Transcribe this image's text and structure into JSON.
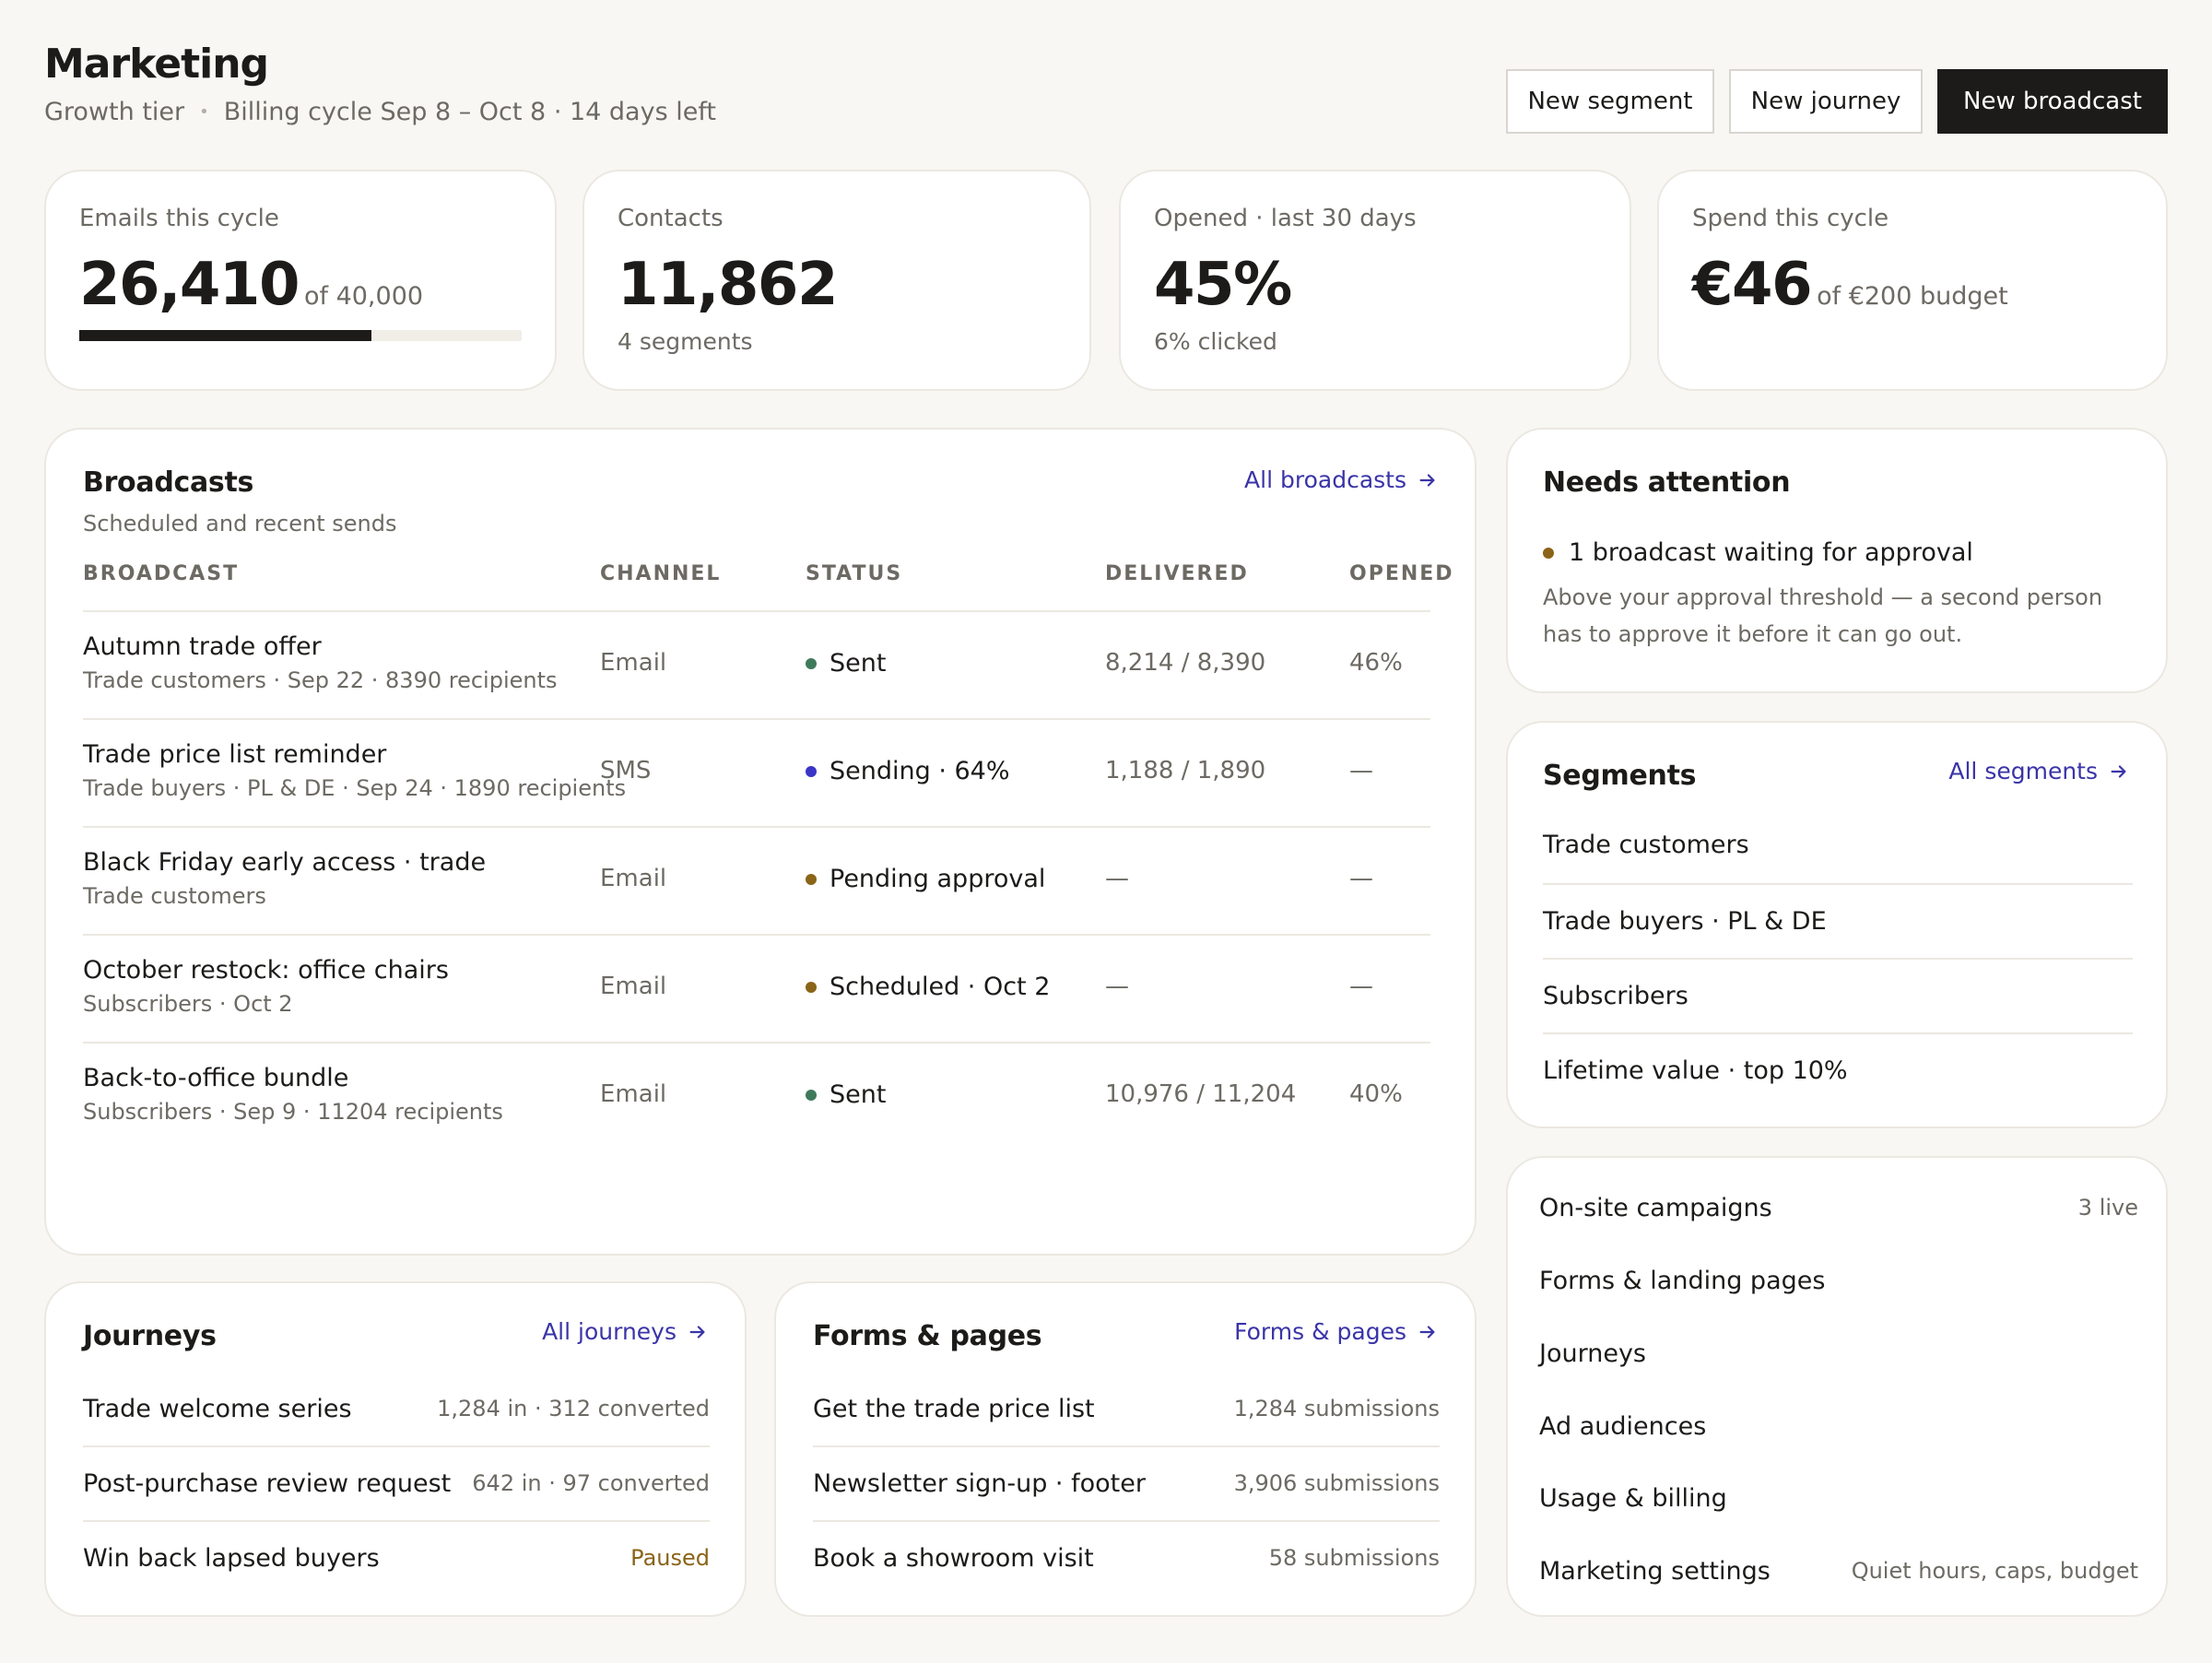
{
  "header": {
    "title": "Marketing",
    "tier": "Growth tier",
    "billing": "Billing cycle Sep 8 – Oct 8 · 14 days left",
    "buttons": {
      "new_segment": "New segment",
      "new_journey": "New journey",
      "new_broadcast": "New broadcast"
    }
  },
  "stats": [
    {
      "label": "Emails this cycle",
      "value": "26,410",
      "suffix": "of 40,000",
      "progress": 0.66
    },
    {
      "label": "Contacts",
      "value": "11,862",
      "note": "4 segments"
    },
    {
      "label": "Opened · last 30 days",
      "value": "45%",
      "note": "6% clicked"
    },
    {
      "label": "Spend this cycle",
      "value": "€46",
      "suffix": "of €200 budget"
    }
  ],
  "broadcasts": {
    "title": "Broadcasts",
    "subtitle": "Scheduled and recent sends",
    "link": "All broadcasts",
    "columns": [
      "BROADCAST",
      "CHANNEL",
      "STATUS",
      "DELIVERED",
      "OPENED"
    ],
    "rows": [
      {
        "name": "Autumn trade offer",
        "meta": "Trade customers · Sep 22 · 8390 recipients",
        "channel": "Email",
        "status": "Sent",
        "status_color": "#3f7a5c",
        "delivered": "8,214 / 8,390",
        "opened": "46%"
      },
      {
        "name": "Trade price list reminder",
        "meta": "Trade buyers · PL & DE · Sep 24 · 1890 recipients",
        "channel": "SMS",
        "status": "Sending · 64%",
        "status_color": "#3b35c7",
        "delivered": "1,188 / 1,890",
        "opened": "—"
      },
      {
        "name": "Black Friday early access · trade",
        "meta": "Trade customers",
        "channel": "Email",
        "status": "Pending approval",
        "status_color": "#8a6418",
        "delivered": "—",
        "opened": "—"
      },
      {
        "name": "October restock: office chairs",
        "meta": "Subscribers · Oct 2",
        "channel": "Email",
        "status": "Scheduled · Oct 2",
        "status_color": "#8a6418",
        "delivered": "—",
        "opened": "—"
      },
      {
        "name": "Back-to-office bundle",
        "meta": "Subscribers · Sep 9 · 11204 recipients",
        "channel": "Email",
        "status": "Sent",
        "status_color": "#3f7a5c",
        "delivered": "10,976 / 11,204",
        "opened": "40%"
      }
    ]
  },
  "attention": {
    "title": "Needs attention",
    "item_title": "1 broadcast waiting for approval",
    "item_text": "Above your approval threshold — a second person has to approve it before it can go out.",
    "dot_color": "#8a6418"
  },
  "segments": {
    "title": "Segments",
    "link": "All segments",
    "items": [
      "Trade customers",
      "Trade buyers · PL & DE",
      "Subscribers",
      "Lifetime value · top 10%"
    ]
  },
  "nav": {
    "items": [
      {
        "label": "On-site campaigns",
        "note": "3 live"
      },
      {
        "label": "Forms & landing pages",
        "note": ""
      },
      {
        "label": "Journeys",
        "note": ""
      },
      {
        "label": "Ad audiences",
        "note": ""
      },
      {
        "label": "Usage & billing",
        "note": ""
      },
      {
        "label": "Marketing settings",
        "note": "Quiet hours, caps, budget"
      }
    ]
  },
  "journeys": {
    "title": "Journeys",
    "link": "All journeys",
    "items": [
      {
        "name": "Trade welcome series",
        "stat": "1,284 in · 312 converted"
      },
      {
        "name": "Post-purchase review request",
        "stat": "642 in · 97 converted"
      },
      {
        "name": "Win back lapsed buyers",
        "stat": "Paused",
        "stat_color": "#8a6418"
      }
    ]
  },
  "forms": {
    "title": "Forms & pages",
    "link": "Forms & pages",
    "items": [
      {
        "name": "Get the trade price list",
        "stat": "1,284 submissions"
      },
      {
        "name": "Newsletter sign-up · footer",
        "stat": "3,906 submissions"
      },
      {
        "name": "Book a showroom visit",
        "stat": "58 submissions"
      }
    ]
  }
}
